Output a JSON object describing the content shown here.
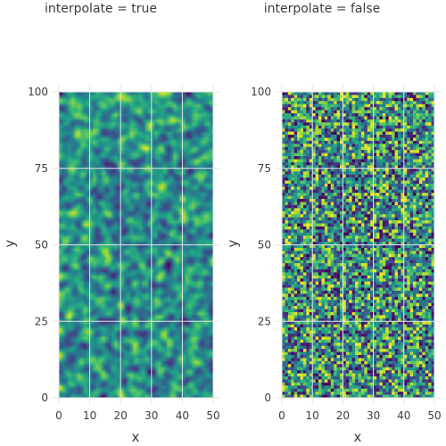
{
  "chart_data": [
    {
      "type": "heatmap",
      "title": "interpolate = true",
      "xlabel": "x",
      "ylabel": "y",
      "xlim": [
        0,
        50
      ],
      "ylim": [
        0,
        100
      ],
      "xticks": [
        "0",
        "10",
        "20",
        "30",
        "40",
        "50"
      ],
      "yticks": [
        "0",
        "25",
        "50",
        "75",
        "100"
      ],
      "colormap": "viridis",
      "grid_cells": [
        50,
        100
      ],
      "interpolate": true,
      "seed": 7
    },
    {
      "type": "heatmap",
      "title": "interpolate = false",
      "xlabel": "x",
      "ylabel": "y",
      "xlim": [
        0,
        50
      ],
      "ylim": [
        0,
        100
      ],
      "xticks": [
        "0",
        "10",
        "20",
        "30",
        "40",
        "50"
      ],
      "yticks": [
        "0",
        "25",
        "50",
        "75",
        "100"
      ],
      "colormap": "viridis",
      "grid_cells": [
        50,
        100
      ],
      "interpolate": false,
      "seed": 7
    }
  ]
}
